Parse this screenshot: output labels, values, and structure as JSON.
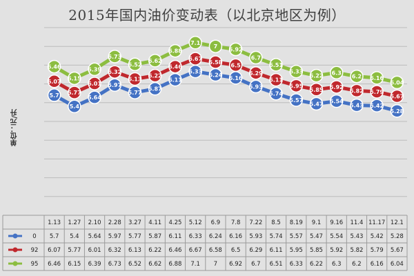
{
  "title": "2015年国内油价变动表（以北京地区为例）",
  "chart_data": {
    "type": "line",
    "title": "2015年国内油价变动表（以北京地区为例）",
    "ylabel": "单位：元/升",
    "xlabel": "",
    "categories": [
      "1.13",
      "1.27",
      "2.10",
      "2.28",
      "3.27",
      "4.11",
      "4.25",
      "5.12",
      "6.9",
      "7.8",
      "7.22",
      "8.5",
      "8.19",
      "9.1",
      "9.16",
      "11.4",
      "11.17",
      "12.1"
    ],
    "series": [
      {
        "name": "0",
        "color": "#4472c4",
        "values": [
          5.7,
          5.4,
          5.64,
          5.97,
          5.77,
          5.87,
          6.11,
          6.33,
          6.24,
          6.16,
          5.93,
          5.74,
          5.57,
          5.47,
          5.54,
          5.43,
          5.42,
          5.28
        ]
      },
      {
        "name": "92",
        "color": "#c0282d",
        "values": [
          6.07,
          5.77,
          6.01,
          6.32,
          6.13,
          6.22,
          6.46,
          6.67,
          6.58,
          6.5,
          6.29,
          6.11,
          5.95,
          5.85,
          5.92,
          5.82,
          5.79,
          5.67
        ]
      },
      {
        "name": "95",
        "color": "#8cbd40",
        "values": [
          6.46,
          6.15,
          6.39,
          6.73,
          6.52,
          6.62,
          6.88,
          7.1,
          7,
          6.92,
          6.7,
          6.51,
          6.33,
          6.22,
          6.3,
          6.2,
          6.16,
          6.04
        ]
      }
    ],
    "ylim": [
      2.5,
      7.5
    ],
    "grid": true,
    "legend": "data-table-left"
  }
}
